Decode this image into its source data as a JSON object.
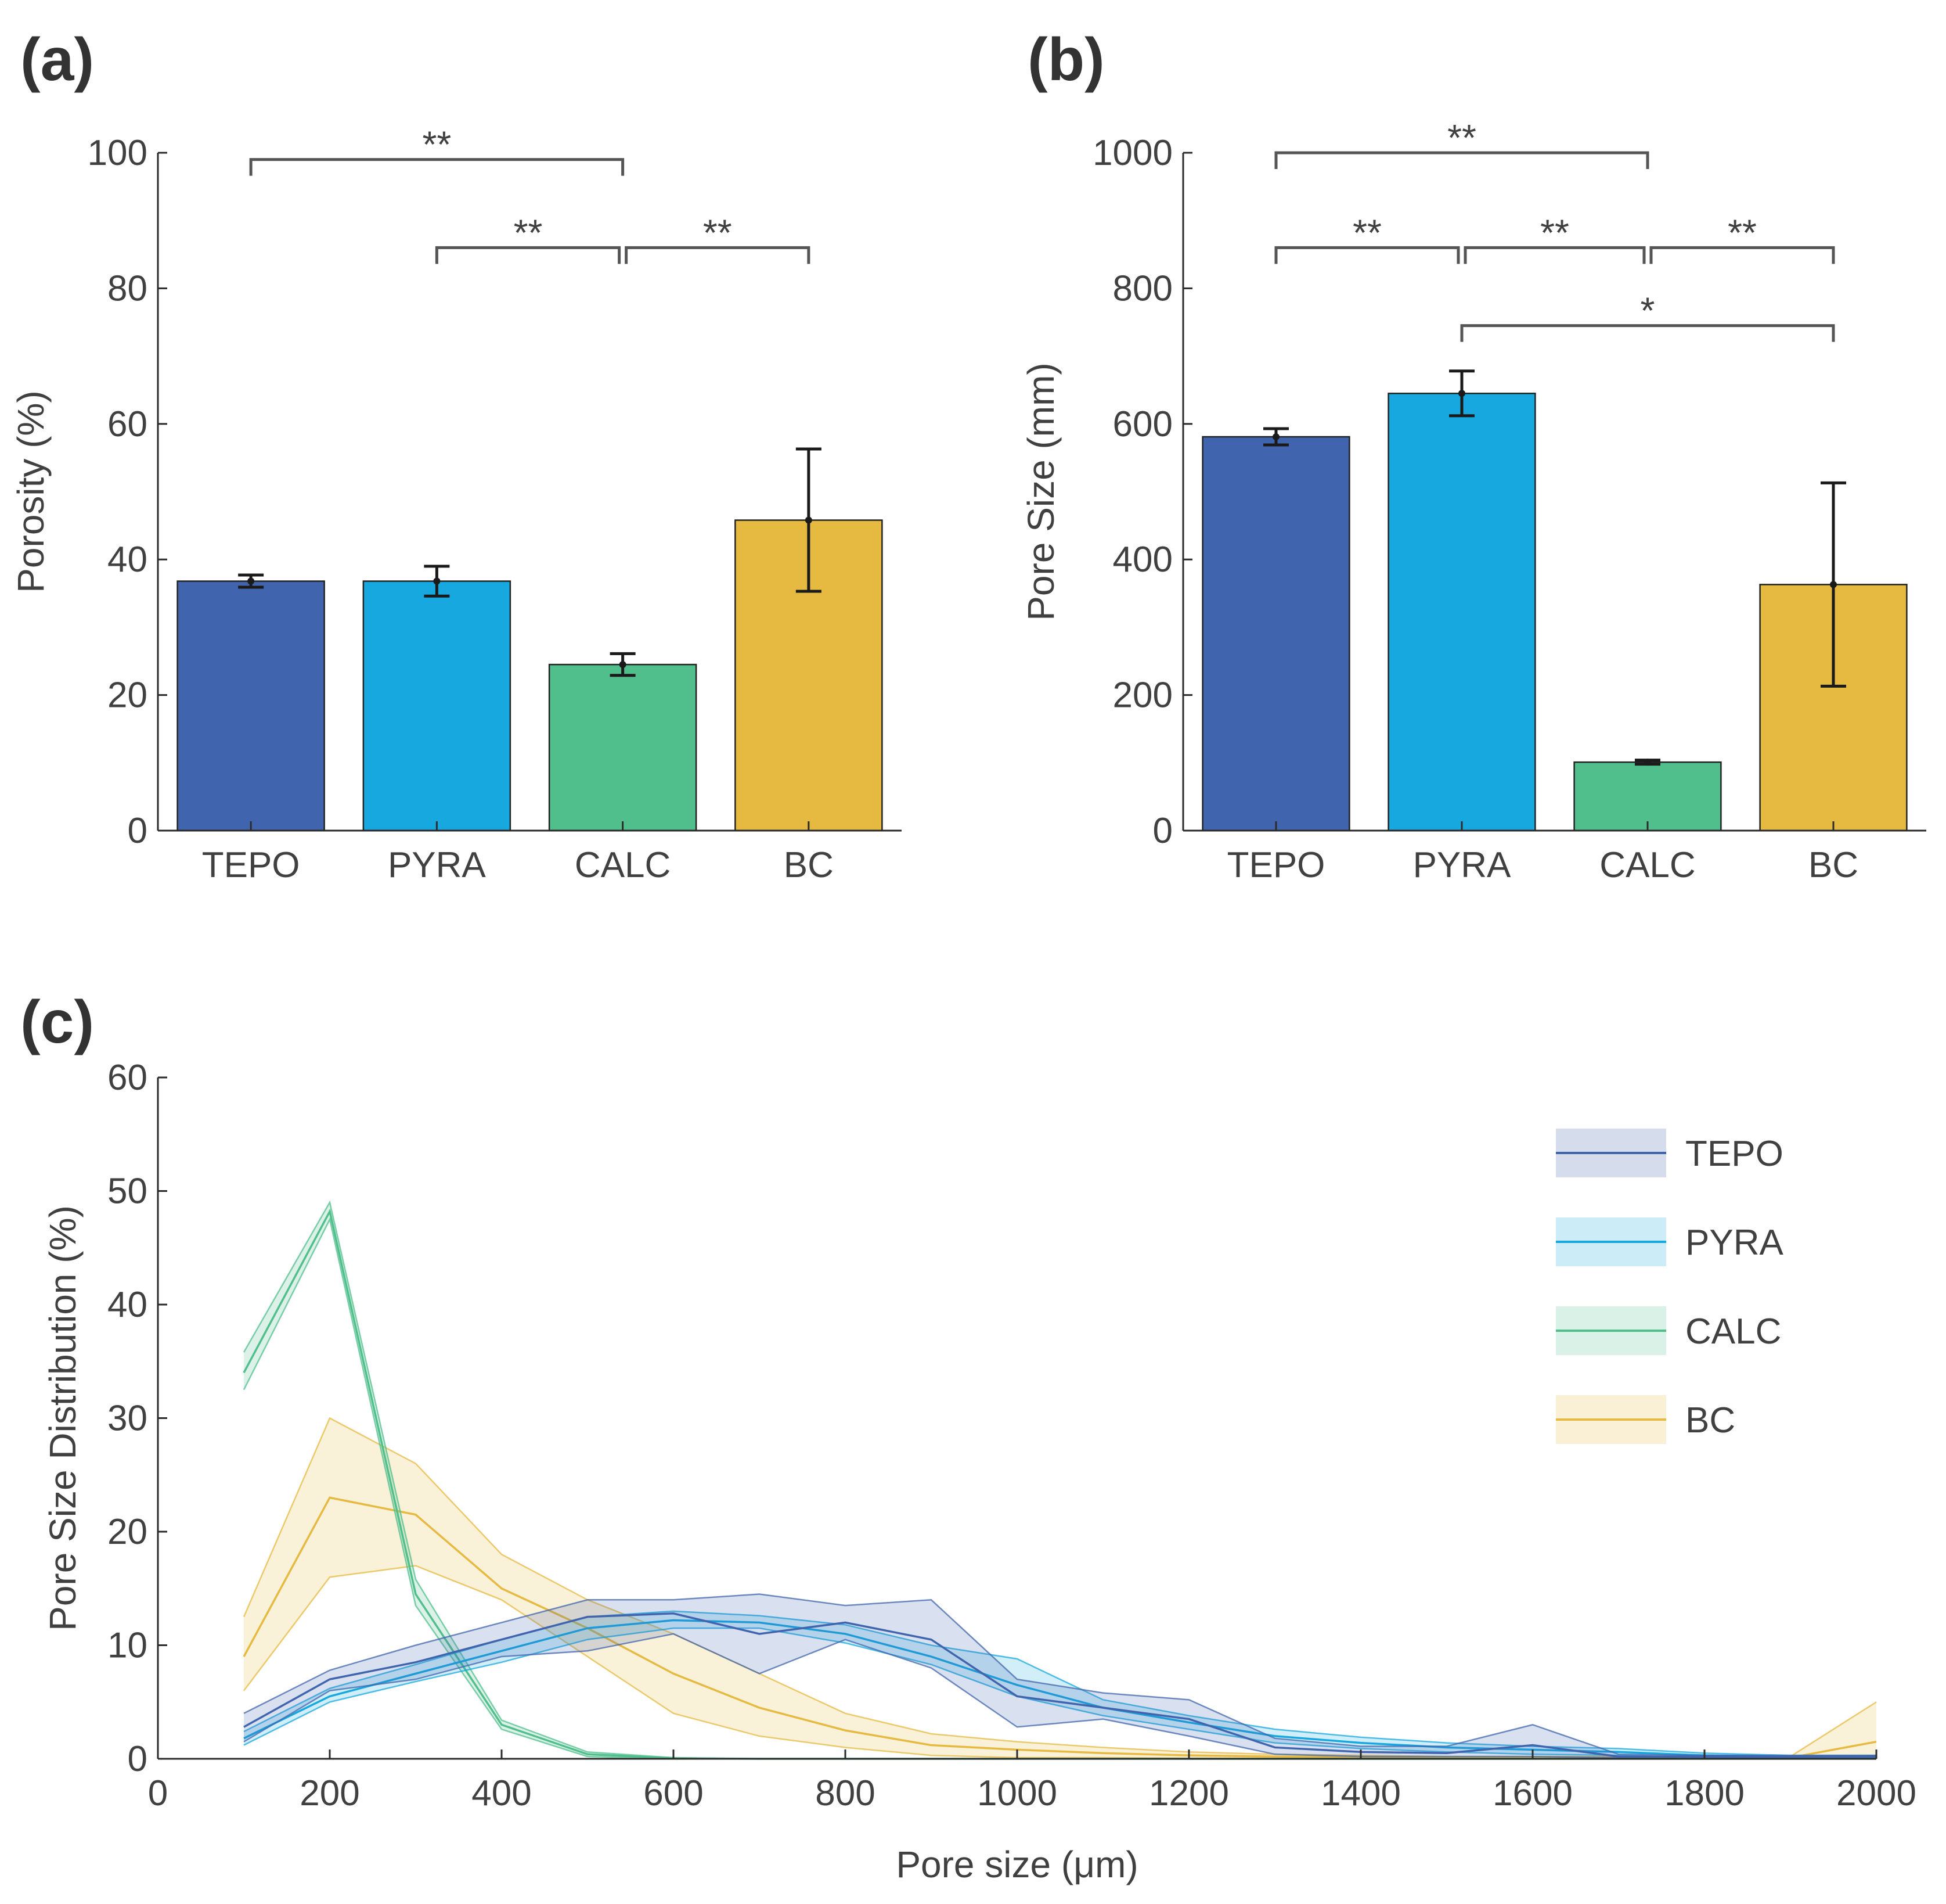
{
  "chart_data": [
    {
      "type": "bar",
      "panel": "(a)",
      "categories": [
        "TEPO",
        "PYRA",
        "CALC",
        "BC"
      ],
      "values": [
        36.8,
        36.8,
        24.5,
        45.8
      ],
      "errors": [
        0.9,
        2.2,
        1.6,
        10.5
      ],
      "colors": [
        "#4065AE",
        "#17A8E0",
        "#50BF8C",
        "#E6B940"
      ],
      "xlabel": "",
      "ylabel": "Porosity (%)",
      "ylim": [
        0,
        100
      ],
      "yticks": [
        0,
        20,
        40,
        60,
        80,
        100
      ],
      "significance": [
        {
          "from": 0,
          "to": 2,
          "label": "**",
          "y": 99
        },
        {
          "from": 1,
          "to": 2,
          "label": "**",
          "y": 86
        },
        {
          "from": 2,
          "to": 3,
          "label": "**",
          "y": 86
        }
      ]
    },
    {
      "type": "bar",
      "panel": "(b)",
      "categories": [
        "TEPO",
        "PYRA",
        "CALC",
        "BC"
      ],
      "values": [
        581,
        645,
        101,
        363
      ],
      "errors": [
        12,
        33,
        3,
        150
      ],
      "colors": [
        "#4065AE",
        "#17A8E0",
        "#50BF8C",
        "#E6B940"
      ],
      "xlabel": "",
      "ylabel": "Pore Size (mm)",
      "ylim": [
        0,
        1000
      ],
      "yticks": [
        0,
        200,
        400,
        600,
        800,
        1000
      ],
      "significance": [
        {
          "from": 0,
          "to": 2,
          "label": "**",
          "y": 1000
        },
        {
          "from": 0,
          "to": 1,
          "label": "**",
          "y": 860
        },
        {
          "from": 1,
          "to": 2,
          "label": "**",
          "y": 860
        },
        {
          "from": 2,
          "to": 3,
          "label": "**",
          "y": 860
        },
        {
          "from": 1,
          "to": 3,
          "label": "*",
          "y": 745
        }
      ]
    },
    {
      "type": "area",
      "panel": "(c)",
      "xlabel": "Pore size (μm)",
      "ylabel": "Pore Size Distribution (%)",
      "xlim": [
        0,
        2000
      ],
      "ylim": [
        0,
        60
      ],
      "xticks": [
        0,
        200,
        400,
        600,
        800,
        1000,
        1200,
        1400,
        1600,
        1800,
        2000
      ],
      "yticks": [
        0,
        10,
        20,
        30,
        40,
        50,
        60
      ],
      "x": [
        100,
        200,
        300,
        400,
        500,
        600,
        700,
        800,
        900,
        1000,
        1100,
        1200,
        1300,
        1400,
        1500,
        1600,
        1700,
        1800,
        1900,
        2000
      ],
      "legend_position": "top-right",
      "series": [
        {
          "name": "TEPO",
          "color": "#4065AE",
          "values": [
            2.8,
            7.0,
            8.5,
            10.5,
            12.5,
            12.8,
            11.0,
            12.0,
            10.5,
            5.5,
            4.5,
            3.5,
            1.0,
            0.6,
            0.5,
            1.2,
            0.2,
            0.2,
            0.2,
            0.2
          ],
          "lower": [
            1.5,
            6.0,
            7.0,
            9.0,
            9.5,
            11.0,
            7.5,
            10.5,
            8.0,
            2.8,
            3.5,
            2.0,
            0.4,
            0.2,
            0.2,
            0.2,
            0.1,
            0.1,
            0.1,
            0.1
          ],
          "upper": [
            4.0,
            7.8,
            10.0,
            12.0,
            14.0,
            14.0,
            14.5,
            13.5,
            14.0,
            7.0,
            5.8,
            5.2,
            1.8,
            1.1,
            1.1,
            3.0,
            0.4,
            0.3,
            0.3,
            0.3
          ]
        },
        {
          "name": "PYRA",
          "color": "#17A8E0",
          "values": [
            1.8,
            5.5,
            7.5,
            9.5,
            11.5,
            12.2,
            12.0,
            11.0,
            9.0,
            6.5,
            4.5,
            3.2,
            2.0,
            1.4,
            1.0,
            0.8,
            0.6,
            0.3,
            0.2,
            0.2
          ],
          "lower": [
            1.2,
            5.0,
            6.8,
            8.5,
            10.5,
            11.5,
            11.5,
            10.2,
            8.3,
            5.5,
            3.8,
            2.6,
            1.4,
            0.9,
            0.6,
            0.4,
            0.3,
            0.1,
            0.1,
            0.1
          ],
          "upper": [
            2.4,
            6.2,
            8.3,
            10.5,
            12.5,
            13.0,
            12.6,
            11.8,
            10.0,
            8.8,
            5.2,
            3.8,
            2.6,
            1.9,
            1.4,
            1.1,
            0.9,
            0.5,
            0.3,
            0.3
          ]
        },
        {
          "name": "CALC",
          "color": "#50BF8C",
          "values": [
            34.0,
            48.2,
            14.5,
            3.0,
            0.4,
            0.05,
            0,
            0,
            0,
            0,
            0,
            0,
            0,
            0,
            0,
            0,
            0,
            0,
            0,
            0
          ],
          "lower": [
            32.5,
            47.5,
            13.5,
            2.6,
            0.2,
            0,
            0,
            0,
            0,
            0,
            0,
            0,
            0,
            0,
            0,
            0,
            0,
            0,
            0,
            0
          ],
          "upper": [
            35.8,
            49.0,
            15.8,
            3.4,
            0.6,
            0.1,
            0,
            0,
            0,
            0,
            0,
            0,
            0,
            0,
            0,
            0,
            0,
            0,
            0,
            0
          ]
        },
        {
          "name": "BC",
          "color": "#E6B940",
          "values": [
            9.0,
            23.0,
            21.5,
            15.0,
            11.5,
            7.5,
            4.5,
            2.5,
            1.2,
            0.8,
            0.5,
            0.3,
            0.2,
            0.15,
            0.1,
            0.1,
            0.1,
            0.1,
            0.1,
            1.5
          ],
          "lower": [
            6.0,
            16.0,
            17.0,
            14.0,
            9.0,
            4.0,
            2.0,
            1.0,
            0.3,
            0.1,
            0.1,
            0.05,
            0.05,
            0.05,
            0.05,
            0.05,
            0.05,
            0.05,
            0.05,
            0.3
          ],
          "upper": [
            12.5,
            30.0,
            26.0,
            18.0,
            14.0,
            11.0,
            7.5,
            4.0,
            2.2,
            1.5,
            1.0,
            0.6,
            0.4,
            0.3,
            0.2,
            0.2,
            0.2,
            0.2,
            0.2,
            5.0
          ]
        }
      ]
    }
  ]
}
